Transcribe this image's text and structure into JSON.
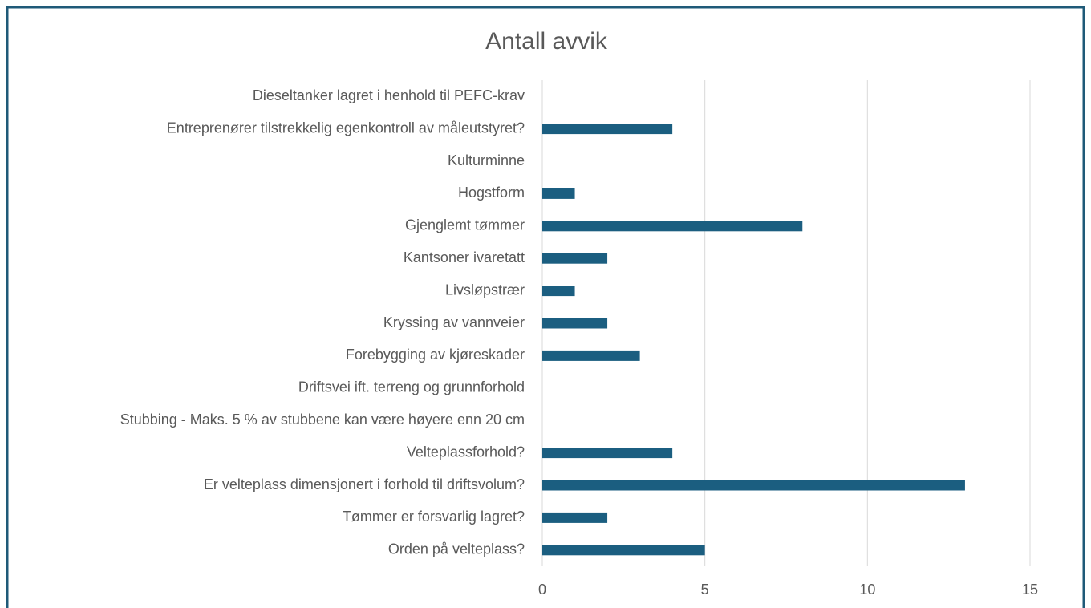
{
  "chart_data": {
    "type": "bar",
    "orientation": "horizontal",
    "title": "Antall avvik",
    "categories": [
      "Dieseltanker lagret i henhold til PEFC-krav",
      "Entreprenører tilstrekkelig egenkontroll av måleutstyret?",
      "Kulturminne",
      "Hogstform",
      "Gjenglemt tømmer ",
      "Kantsoner ivaretatt ",
      "Livsløpstrær ",
      "Kryssing av vannveier ",
      "Forebygging av kjøreskader",
      "Driftsvei ift. terreng og grunnforhold",
      "Stubbing - Maks. 5 % av stubbene kan være høyere enn 20 cm",
      "Velteplassforhold?",
      "Er velteplass dimensjonert i forhold til driftsvolum?",
      "Tømmer er forsvarlig lagret?",
      "Orden på velteplass?"
    ],
    "values": [
      0,
      4,
      0,
      1,
      8,
      2,
      1,
      2,
      3,
      0,
      0,
      4,
      13,
      2,
      5
    ],
    "color": "#1b5e80",
    "xlim": [
      0,
      15
    ],
    "xticks": [
      0,
      5,
      10,
      15
    ],
    "grid": true
  }
}
